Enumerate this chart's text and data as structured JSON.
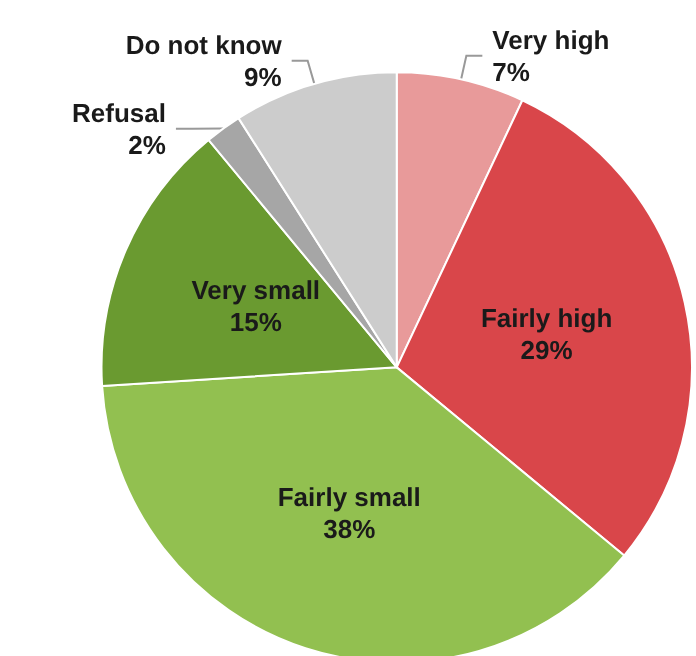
{
  "chart_data": {
    "type": "pie",
    "categories": [
      "Very high",
      "Fairly high",
      "Fairly small",
      "Very small",
      "Refusal",
      "Do not know"
    ],
    "values": [
      7,
      29,
      38,
      15,
      2,
      9
    ],
    "value_labels": [
      "7%",
      "29%",
      "38%",
      "15%",
      "2%",
      "9%"
    ],
    "colors": [
      "#e89a9a",
      "#d9464a",
      "#92c050",
      "#6a9a30",
      "#a6a6a6",
      "#cccccc"
    ],
    "legend": false
  }
}
